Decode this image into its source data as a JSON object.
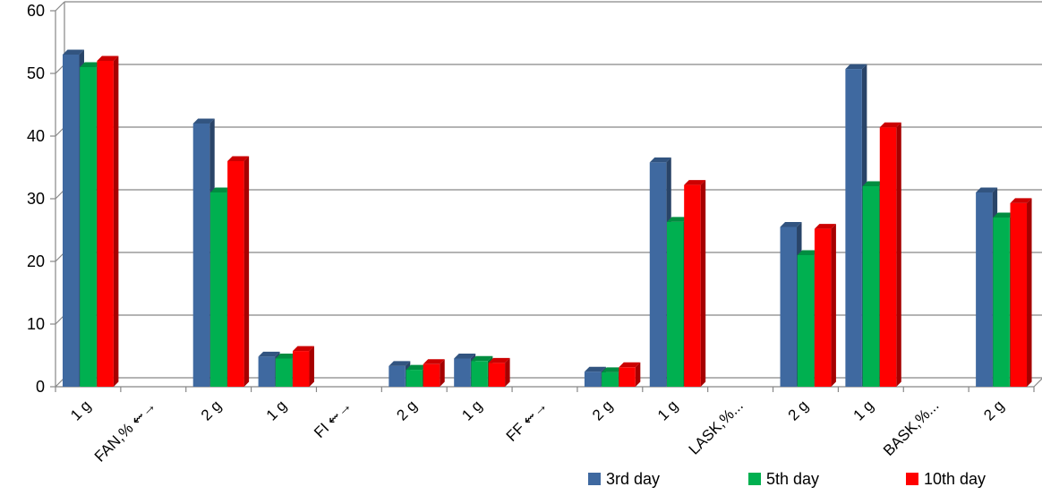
{
  "chart_data": {
    "type": "bar",
    "style": "3d-clustered-column",
    "categories": [
      "1 g",
      "FAN,% ⇜→",
      "2 g",
      "1 g",
      "FI ⇜→",
      "2 g",
      "1 g",
      "FF ⇜→",
      "2 g",
      "1 g",
      "LASK,%...",
      "2 g",
      "1 g",
      "BASK,%...",
      "2 g"
    ],
    "series": [
      {
        "name": "3rd day",
        "color": "#3F69A0",
        "values": [
          53,
          null,
          42,
          4.8,
          null,
          3.3,
          4.5,
          null,
          2.4,
          35.8,
          null,
          25.5,
          50.7,
          null,
          31
        ]
      },
      {
        "name": "5th day",
        "color": "#00B050",
        "values": [
          51,
          null,
          31,
          4.5,
          null,
          2.7,
          4.1,
          null,
          2.3,
          26.3,
          null,
          21,
          32,
          null,
          27
        ]
      },
      {
        "name": "10th day",
        "color": "#FF0000",
        "values": [
          52,
          null,
          36,
          5.7,
          null,
          3.6,
          3.8,
          null,
          3.1,
          32.2,
          null,
          25.2,
          41.4,
          null,
          29.3
        ]
      }
    ],
    "ylim": [
      0,
      60
    ],
    "yticks": [
      0,
      10,
      20,
      30,
      40,
      50,
      60
    ],
    "grid": true,
    "legend_position": "bottom-right"
  }
}
